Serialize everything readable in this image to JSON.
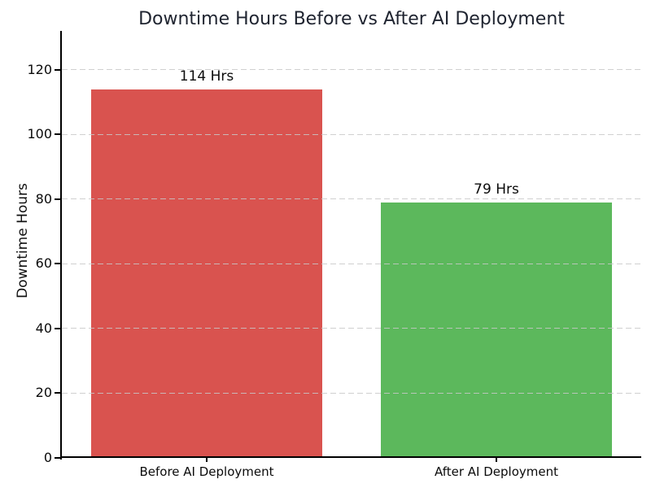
{
  "figure": {
    "background": "#ffffff"
  },
  "chart_data": {
    "type": "bar",
    "title": "Downtime Hours Before vs After AI Deployment",
    "categories": [
      "Before AI Deployment",
      "After AI Deployment"
    ],
    "values": [
      114,
      79
    ],
    "bar_labels": [
      "114 Hrs",
      "79 Hrs"
    ],
    "bar_colors": [
      "#d9534f",
      "#5cb85c"
    ],
    "xlabel": "",
    "ylabel": "Downtime Hours",
    "yticks": [
      0,
      20,
      40,
      60,
      80,
      100,
      120
    ],
    "ylim": [
      0,
      132
    ],
    "bar_width_fraction": 0.8,
    "grid": {
      "axis": "y",
      "style": "dashed",
      "color": "#c8c8c8",
      "drawn_over_bars": true
    },
    "legend": "none",
    "title_color": "#1f2430",
    "text_color": "#0b0b0b",
    "spine_color": "#000000"
  }
}
